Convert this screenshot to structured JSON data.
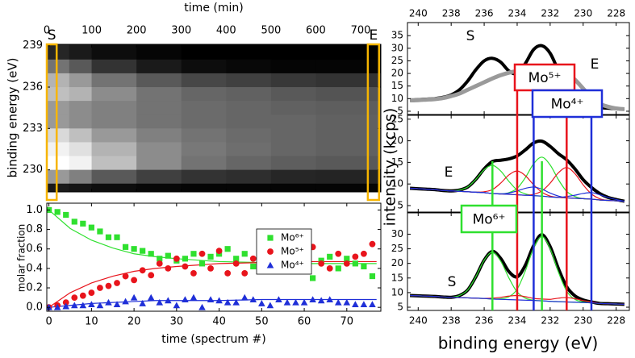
{
  "chart_data": [
    {
      "type": "heatmap",
      "x_label": "time (min)",
      "y_label": "binding energy (eV)",
      "x": [
        0,
        50,
        100,
        200,
        300,
        400,
        500,
        600,
        745
      ],
      "y": [
        239.1,
        238,
        237,
        236,
        235,
        234,
        233,
        232,
        231,
        230,
        229,
        228.4
      ],
      "z": [
        [
          0.15,
          0.1,
          0.05,
          0.02,
          0,
          0,
          0,
          0
        ],
        [
          0.45,
          0.35,
          0.2,
          0.1,
          0.05,
          0.03,
          0.02,
          0.02
        ],
        [
          0.7,
          0.6,
          0.45,
          0.35,
          0.28,
          0.25,
          0.22,
          0.2
        ],
        [
          0.75,
          0.7,
          0.55,
          0.45,
          0.4,
          0.38,
          0.35,
          0.33
        ],
        [
          0.6,
          0.55,
          0.5,
          0.45,
          0.42,
          0.4,
          0.38,
          0.37
        ],
        [
          0.6,
          0.55,
          0.5,
          0.45,
          0.42,
          0.4,
          0.4,
          0.38
        ],
        [
          0.85,
          0.75,
          0.6,
          0.5,
          0.45,
          0.42,
          0.4,
          0.38
        ],
        [
          0.95,
          0.88,
          0.7,
          0.55,
          0.47,
          0.43,
          0.4,
          0.38
        ],
        [
          1,
          0.95,
          0.75,
          0.55,
          0.45,
          0.4,
          0.37,
          0.35
        ],
        [
          0.6,
          0.5,
          0.35,
          0.25,
          0.2,
          0.18,
          0.15,
          0.14
        ],
        [
          0.1,
          0.08,
          0.05,
          0.03,
          0.02,
          0.02,
          0.02,
          0.02
        ]
      ],
      "colormap": [
        "#000000",
        "#ffffff"
      ],
      "xlim": [
        0,
        745
      ],
      "ylim": [
        228.4,
        239.1
      ],
      "xticks": [
        0,
        100,
        200,
        300,
        400,
        500,
        600,
        700
      ],
      "yticks": [
        230,
        233,
        236,
        239
      ],
      "xaxis": "top",
      "highlights": [
        {
          "label": "S",
          "xlim": [
            0,
            22
          ]
        },
        {
          "label": "E",
          "xlim": [
            716,
            741
          ]
        }
      ],
      "highlight_color": "#f7b500"
    },
    {
      "type": "scatter",
      "x_label": "time (spectrum #)",
      "y_label": "molar fraction",
      "x": [
        0,
        2,
        4,
        6,
        8,
        10,
        12,
        14,
        16,
        18,
        20,
        22,
        24,
        26,
        28,
        30,
        32,
        34,
        36,
        38,
        40,
        42,
        44,
        46,
        48,
        50,
        52,
        54,
        56,
        58,
        60,
        62,
        64,
        66,
        68,
        70,
        72,
        74,
        76
      ],
      "series": [
        {
          "name": "Mo⁶⁺",
          "color": "#2fe02f",
          "marker": "square",
          "values": [
            1.0,
            0.98,
            0.95,
            0.88,
            0.86,
            0.82,
            0.78,
            0.72,
            0.72,
            0.62,
            0.6,
            0.58,
            0.55,
            0.5,
            0.53,
            0.48,
            0.5,
            0.55,
            0.45,
            0.52,
            0.55,
            0.6,
            0.5,
            0.55,
            0.42,
            0.38,
            0.5,
            0.52,
            0.45,
            0.4,
            0.55,
            0.3,
            0.48,
            0.52,
            0.4,
            0.5,
            0.45,
            0.42,
            0.32
          ]
        },
        {
          "name": "Mo⁵⁺",
          "color": "#e8141c",
          "marker": "circle",
          "values": [
            0.0,
            0.02,
            0.05,
            0.1,
            0.12,
            0.15,
            0.2,
            0.22,
            0.25,
            0.32,
            0.28,
            0.38,
            0.33,
            0.45,
            0.4,
            0.5,
            0.42,
            0.35,
            0.55,
            0.4,
            0.58,
            0.35,
            0.45,
            0.35,
            0.5,
            0.58,
            0.48,
            0.4,
            0.5,
            0.55,
            0.4,
            0.62,
            0.45,
            0.4,
            0.55,
            0.45,
            0.52,
            0.55,
            0.65
          ]
        },
        {
          "name": "Mo⁴⁺",
          "color": "#1f2fd8",
          "marker": "triangle",
          "values": [
            0.0,
            0.0,
            0.01,
            0.02,
            0.02,
            0.03,
            0.02,
            0.05,
            0.03,
            0.06,
            0.1,
            0.04,
            0.1,
            0.05,
            0.07,
            0.02,
            0.08,
            0.1,
            0.0,
            0.08,
            0.07,
            0.05,
            0.05,
            0.1,
            0.08,
            0.04,
            0.02,
            0.08,
            0.05,
            0.05,
            0.05,
            0.08,
            0.07,
            0.08,
            0.05,
            0.05,
            0.03,
            0.03,
            0.03
          ]
        }
      ],
      "fit_x": [
        0,
        5,
        10,
        15,
        20,
        25,
        30,
        40,
        50,
        60,
        70,
        77
      ],
      "fits": [
        [
          1.0,
          0.81,
          0.69,
          0.61,
          0.55,
          0.52,
          0.5,
          0.47,
          0.46,
          0.45,
          0.45,
          0.45
        ],
        [
          0.0,
          0.15,
          0.25,
          0.32,
          0.37,
          0.4,
          0.42,
          0.45,
          0.46,
          0.47,
          0.47,
          0.47
        ],
        [
          0.0,
          0.02,
          0.04,
          0.05,
          0.06,
          0.07,
          0.07,
          0.07,
          0.08,
          0.08,
          0.08,
          0.08
        ]
      ],
      "xlim": [
        -0.5,
        78
      ],
      "ylim": [
        -0.04,
        1.07
      ],
      "xticks": [
        0,
        10,
        20,
        30,
        40,
        50,
        60,
        70
      ],
      "yticks": [
        {
          "value": 0,
          "label": "0.0"
        },
        0.2,
        0.4,
        0.6,
        0.8,
        {
          "value": 1,
          "label": "1.0"
        }
      ],
      "xaxis": "bottom",
      "legend": "center right"
    },
    {
      "type": "line",
      "x": [
        240.5,
        240,
        239.5,
        239,
        238.5,
        238,
        237.5,
        237,
        236.5,
        236,
        235.5,
        235,
        234.5,
        234,
        233.5,
        233,
        232.5,
        232,
        231.5,
        231,
        230.5,
        230,
        229.5,
        229,
        228.5,
        228,
        227.5
      ],
      "series": [
        {
          "name": "S",
          "color": "#000000",
          "width": 4,
          "values": [
            9.5,
            9.6,
            9.8,
            10.0,
            10.5,
            11.5,
            13.5,
            17,
            21.5,
            25,
            26,
            24.5,
            21,
            20,
            24,
            29.5,
            31,
            28,
            21,
            14,
            10,
            8,
            7,
            6.5,
            6.2,
            6.0,
            5.9
          ]
        },
        {
          "name": "E",
          "color": "#9a9a9a",
          "width": 5,
          "values": [
            9.3,
            9.4,
            9.6,
            9.8,
            10.2,
            11,
            12,
            13.5,
            15,
            16.5,
            18,
            19.3,
            20.3,
            21,
            21.7,
            22.2,
            22.5,
            22.3,
            21.5,
            20,
            17.5,
            14,
            10.5,
            8,
            6.8,
            6.1,
            5.8
          ]
        }
      ],
      "label_color": "#f5c000",
      "xlim": [
        240.65,
        227.2
      ],
      "ylim": [
        3.7,
        40.2
      ],
      "xticks": [
        240,
        238,
        236,
        234,
        232,
        230,
        228
      ],
      "yticks": [
        5,
        10,
        15,
        20,
        25,
        30,
        35
      ],
      "xaxis": "top"
    },
    {
      "type": "line",
      "y_label": "intensity (kcps)",
      "x": [
        240.5,
        240,
        239.5,
        239,
        238.5,
        238,
        237.5,
        237,
        236.5,
        236,
        235.5,
        235,
        234.5,
        234,
        233.5,
        233,
        232.5,
        232,
        231.5,
        231,
        230.5,
        230,
        229.5,
        229,
        228.5,
        228,
        227.5
      ],
      "series": [
        {
          "name": "E",
          "color": "#000000",
          "width": 4,
          "values": [
            9.0,
            8.9,
            8.8,
            8.7,
            8.5,
            8.4,
            8.6,
            9.3,
            11.1,
            13.5,
            15.2,
            15.5,
            15.8,
            16.5,
            17.9,
            19.5,
            19.9,
            18.7,
            17.0,
            15.6,
            13.5,
            11.0,
            9.2,
            7.8,
            6.9,
            6.4,
            6.0
          ]
        },
        {
          "color": "#2fe02f",
          "width": 1.2,
          "values": [
            9.0,
            8.9,
            8.8,
            8.7,
            8.5,
            8.4,
            8.6,
            9.3,
            11.1,
            13.3,
            14.3,
            13.0,
            10.6,
            8.6,
            7.7,
            7.3,
            7.2,
            7.0,
            6.9,
            6.8,
            6.7,
            6.6,
            6.5,
            6.3,
            6.2,
            6.1,
            6.0
          ]
        },
        {
          "color": "#2fe02f",
          "width": 1.2,
          "values": [
            9.0,
            8.9,
            8.8,
            8.7,
            8.5,
            8.4,
            8.3,
            8.2,
            8.1,
            8.0,
            7.8,
            7.7,
            8.0,
            9.0,
            11.5,
            14.7,
            16.2,
            14.4,
            11.0,
            8.3,
            7.1,
            6.6,
            6.5,
            6.3,
            6.2,
            6.1,
            6.0
          ]
        },
        {
          "color": "#e8141c",
          "width": 1.2,
          "values": [
            9.0,
            8.9,
            8.8,
            8.7,
            8.5,
            8.4,
            8.3,
            8.2,
            8.1,
            8.2,
            8.7,
            10.2,
            12.1,
            13.0,
            11.9,
            9.8,
            8.1,
            7.2,
            6.9,
            6.8,
            6.7,
            6.6,
            6.5,
            6.3,
            6.2,
            6.1,
            6.0
          ]
        },
        {
          "color": "#e8141c",
          "width": 1.2,
          "values": [
            9.0,
            8.9,
            8.8,
            8.7,
            8.5,
            8.4,
            8.3,
            8.2,
            8.1,
            8.0,
            7.8,
            7.7,
            7.6,
            7.5,
            7.4,
            7.6,
            8.4,
            10.2,
            12.6,
            13.8,
            12.4,
            9.8,
            7.7,
            6.6,
            6.2,
            6.1,
            6.0
          ]
        },
        {
          "color": "#1f2fd8",
          "width": 1.2,
          "values": [
            9.0,
            8.9,
            8.8,
            8.7,
            8.5,
            8.4,
            8.3,
            8.2,
            8.1,
            8.0,
            7.8,
            7.7,
            7.9,
            8.4,
            9.0,
            9.3,
            8.8,
            7.9,
            7.2,
            6.8,
            6.7,
            6.6,
            6.5,
            6.3,
            6.2,
            6.1,
            6.0
          ]
        },
        {
          "color": "#1f2fd8",
          "width": 1.2,
          "values": [
            9.0,
            8.9,
            8.8,
            8.7,
            8.5,
            8.4,
            8.3,
            8.2,
            8.1,
            8.0,
            7.8,
            7.7,
            7.6,
            7.5,
            7.4,
            7.3,
            7.2,
            7.0,
            6.9,
            7.1,
            7.4,
            7.8,
            8.0,
            7.5,
            6.9,
            6.4,
            6.0
          ]
        }
      ],
      "label_color": "#f5c000",
      "xlim": [
        240.65,
        227.2
      ],
      "ylim": [
        3.5,
        25.9
      ],
      "xticks": [
        240,
        238,
        236,
        234,
        232,
        230,
        228
      ],
      "yticks": [
        5,
        10,
        15,
        20,
        25
      ]
    },
    {
      "type": "line",
      "x_label": "binding energy (eV)",
      "x": [
        240.5,
        240,
        239.5,
        239,
        238.5,
        238,
        237.5,
        237,
        236.5,
        236,
        235.5,
        235,
        234.5,
        234,
        233.5,
        233,
        232.5,
        232,
        231.5,
        231,
        230.5,
        230,
        229.5,
        229,
        228.5,
        228,
        227.5
      ],
      "series": [
        {
          "name": "S",
          "color": "#000000",
          "width": 4,
          "values": [
            9.0,
            8.9,
            8.8,
            8.7,
            8.5,
            8.4,
            9.0,
            10.9,
            15.5,
            21.1,
            24.1,
            21.7,
            17.2,
            15.4,
            19.4,
            26.1,
            29.8,
            25.7,
            18.2,
            12.0,
            8.9,
            7.5,
            6.8,
            6.3,
            6.2,
            6.1,
            6.0
          ]
        },
        {
          "color": "#2fe02f",
          "width": 1.2,
          "values": [
            9.0,
            8.9,
            8.8,
            8.7,
            8.5,
            8.4,
            9.0,
            10.9,
            15.5,
            21.1,
            23.8,
            20.8,
            15.0,
            10.2,
            8.1,
            7.4,
            7.2,
            7.0,
            6.9,
            6.8,
            6.7,
            6.6,
            6.5,
            6.3,
            6.2,
            6.1,
            6.0
          ]
        },
        {
          "color": "#2fe02f",
          "width": 1.2,
          "values": [
            9.0,
            8.9,
            8.8,
            8.7,
            8.5,
            8.4,
            8.3,
            8.2,
            8.1,
            8.0,
            7.8,
            7.9,
            8.6,
            11.2,
            17.5,
            25.3,
            29.2,
            25.0,
            17.0,
            10.5,
            7.7,
            6.8,
            6.5,
            6.3,
            6.2,
            6.1,
            6.0
          ]
        },
        {
          "color": "#e8141c",
          "width": 1.2,
          "values": [
            9.0,
            8.9,
            8.8,
            8.7,
            8.5,
            8.4,
            8.3,
            8.2,
            8.1,
            8.0,
            8.1,
            8.4,
            8.8,
            9.0,
            8.6,
            8.0,
            7.8,
            7.7,
            8.1,
            8.3,
            7.9,
            7.3,
            6.8,
            6.3,
            6.2,
            6.1,
            6.0
          ]
        },
        {
          "color": "#1f2fd8",
          "width": 1.2,
          "values": [
            9.0,
            8.9,
            8.8,
            8.7,
            8.5,
            8.4,
            8.3,
            8.2,
            8.1,
            8.0,
            7.8,
            7.7,
            7.6,
            7.5,
            7.4,
            7.3,
            7.2,
            7.0,
            6.9,
            6.8,
            6.7,
            6.6,
            6.5,
            6.3,
            6.2,
            6.1,
            6.0
          ]
        }
      ],
      "label_color": "#f5c000",
      "xlim": [
        240.65,
        227.2
      ],
      "ylim": [
        3.9,
        37.3
      ],
      "xticks": [
        240,
        238,
        236,
        234,
        232,
        230,
        228
      ],
      "yticks": [
        5,
        10,
        15,
        20,
        25,
        30
      ],
      "xaxis": "bottom",
      "peak_groups": [
        {
          "label": "Mo⁵⁺",
          "color": "#e8141c",
          "x": [
            234.0,
            231.0
          ]
        },
        {
          "label": "Mo⁴⁺",
          "color": "#1f2fd8",
          "x": [
            233.0,
            229.5
          ]
        },
        {
          "label": "Mo⁶⁺",
          "color": "#2fe02f",
          "x": [
            235.5,
            232.5
          ]
        }
      ]
    }
  ]
}
